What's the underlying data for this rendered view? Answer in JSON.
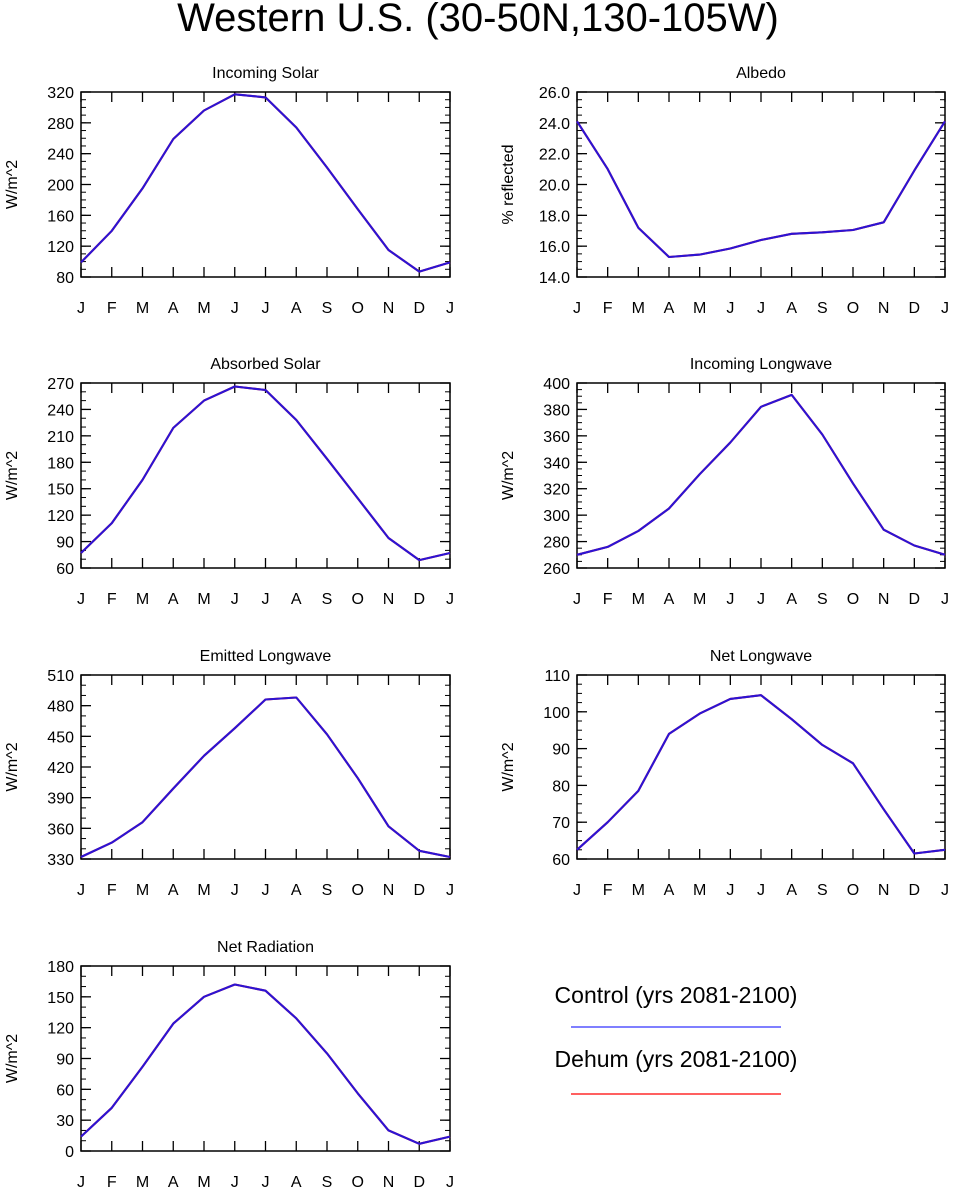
{
  "figure_title": "Western U.S. (30-50N,130-105W)",
  "month_ticks": [
    "J",
    "F",
    "M",
    "A",
    "M",
    "J",
    "J",
    "A",
    "S",
    "O",
    "N",
    "D",
    "J"
  ],
  "legend": {
    "entries": [
      {
        "label": "Control (yrs 2081-2100)",
        "color": "#3333ff"
      },
      {
        "label": "Dehum (yrs 2081-2100)",
        "color": "#ff0000"
      }
    ]
  },
  "colors": {
    "control": "#3333ff",
    "dehum": "#ff0000",
    "overlap": "#2b14d4"
  },
  "chart_data": [
    {
      "type": "line",
      "title": "Incoming Solar",
      "ylabel": "W/m^2",
      "xlabel": "",
      "ylim": [
        80,
        320
      ],
      "yticks": [
        80,
        120,
        160,
        200,
        240,
        280,
        320
      ],
      "ytick_decimals": 0,
      "yminor": 10,
      "x": [
        "J",
        "F",
        "M",
        "A",
        "M",
        "J",
        "J",
        "A",
        "S",
        "O",
        "N",
        "D",
        "J"
      ],
      "series": [
        {
          "name": "Control (yrs 2081-2100)",
          "values": [
            99,
            140,
            195,
            259,
            296,
            317,
            313,
            274,
            222,
            168,
            115,
            87,
            99
          ]
        },
        {
          "name": "Dehum (yrs 2081-2100)",
          "values": [
            99,
            140,
            195,
            259,
            296,
            317,
            313,
            274,
            222,
            168,
            115,
            87,
            99
          ]
        }
      ]
    },
    {
      "type": "line",
      "title": "Albedo",
      "ylabel": "% reflected",
      "xlabel": "",
      "ylim": [
        14,
        26
      ],
      "yticks": [
        14,
        16,
        18,
        20,
        22,
        24,
        26
      ],
      "ytick_decimals": 1,
      "yminor": 0.5,
      "x": [
        "J",
        "F",
        "M",
        "A",
        "M",
        "J",
        "J",
        "A",
        "S",
        "O",
        "N",
        "D",
        "J"
      ],
      "series": [
        {
          "name": "Control (yrs 2081-2100)",
          "values": [
            24.1,
            21.0,
            17.2,
            15.3,
            15.45,
            15.85,
            16.4,
            16.8,
            16.9,
            17.05,
            17.55,
            20.9,
            24.1
          ]
        },
        {
          "name": "Dehum (yrs 2081-2100)",
          "values": [
            24.1,
            21.0,
            17.2,
            15.3,
            15.45,
            15.85,
            16.4,
            16.8,
            16.9,
            17.05,
            17.55,
            20.9,
            24.1
          ]
        }
      ]
    },
    {
      "type": "line",
      "title": "Absorbed Solar",
      "ylabel": "W/m^2",
      "xlabel": "",
      "ylim": [
        60,
        270
      ],
      "yticks": [
        60,
        90,
        120,
        150,
        180,
        210,
        240,
        270
      ],
      "ytick_decimals": 0,
      "yminor": 10,
      "x": [
        "J",
        "F",
        "M",
        "A",
        "M",
        "J",
        "J",
        "A",
        "S",
        "O",
        "N",
        "D",
        "J"
      ],
      "series": [
        {
          "name": "Control (yrs 2081-2100)",
          "values": [
            77,
            111,
            160,
            219,
            250,
            266,
            262,
            228,
            184,
            139,
            94,
            69,
            77
          ]
        },
        {
          "name": "Dehum (yrs 2081-2100)",
          "values": [
            77,
            111,
            160,
            219,
            250,
            266,
            262,
            228,
            184,
            139,
            94,
            69,
            77
          ]
        }
      ]
    },
    {
      "type": "line",
      "title": "Incoming Longwave",
      "ylabel": "W/m^2",
      "xlabel": "",
      "ylim": [
        260,
        400
      ],
      "yticks": [
        260,
        280,
        300,
        320,
        340,
        360,
        380,
        400
      ],
      "ytick_decimals": 0,
      "yminor": 5,
      "x": [
        "J",
        "F",
        "M",
        "A",
        "M",
        "J",
        "J",
        "A",
        "S",
        "O",
        "N",
        "D",
        "J"
      ],
      "series": [
        {
          "name": "Control (yrs 2081-2100)",
          "values": [
            270,
            276,
            288,
            305,
            331,
            355,
            382,
            391,
            361,
            324,
            289,
            277,
            270
          ]
        },
        {
          "name": "Dehum (yrs 2081-2100)",
          "values": [
            270,
            276,
            288,
            305,
            331,
            355,
            382,
            391,
            361,
            324,
            289,
            277,
            270
          ]
        }
      ]
    },
    {
      "type": "line",
      "title": "Emitted Longwave",
      "ylabel": "W/m^2",
      "xlabel": "",
      "ylim": [
        330,
        510
      ],
      "yticks": [
        330,
        360,
        390,
        420,
        450,
        480,
        510
      ],
      "ytick_decimals": 0,
      "yminor": 10,
      "x": [
        "J",
        "F",
        "M",
        "A",
        "M",
        "J",
        "J",
        "A",
        "S",
        "O",
        "N",
        "D",
        "J"
      ],
      "series": [
        {
          "name": "Control (yrs 2081-2100)",
          "values": [
            332,
            346,
            366,
            399,
            431,
            458,
            486,
            488,
            452,
            409,
            362,
            338,
            332
          ]
        },
        {
          "name": "Dehum (yrs 2081-2100)",
          "values": [
            332,
            346,
            366,
            399,
            431,
            458,
            486,
            488,
            452,
            409,
            362,
            338,
            332
          ]
        }
      ]
    },
    {
      "type": "line",
      "title": "Net Longwave",
      "ylabel": "W/m^2",
      "xlabel": "",
      "ylim": [
        60,
        110
      ],
      "yticks": [
        60,
        70,
        80,
        90,
        100,
        110
      ],
      "ytick_decimals": 0,
      "yminor": 2.5,
      "x": [
        "J",
        "F",
        "M",
        "A",
        "M",
        "J",
        "J",
        "A",
        "S",
        "O",
        "N",
        "D",
        "J"
      ],
      "series": [
        {
          "name": "Control (yrs 2081-2100)",
          "values": [
            62.5,
            70,
            78.5,
            94,
            99.5,
            103.5,
            104.5,
            98,
            91,
            86,
            73.5,
            61.5,
            62.5
          ]
        },
        {
          "name": "Dehum (yrs 2081-2100)",
          "values": [
            62.5,
            70,
            78.5,
            94,
            99.5,
            103.5,
            104.5,
            98,
            91,
            86,
            73.5,
            61.5,
            62.5
          ]
        }
      ]
    },
    {
      "type": "line",
      "title": "Net Radiation",
      "ylabel": "W/m^2",
      "xlabel": "",
      "ylim": [
        0,
        180
      ],
      "yticks": [
        0,
        30,
        60,
        90,
        120,
        150,
        180
      ],
      "ytick_decimals": 0,
      "yminor": 10,
      "x": [
        "J",
        "F",
        "M",
        "A",
        "M",
        "J",
        "J",
        "A",
        "S",
        "O",
        "N",
        "D",
        "J"
      ],
      "series": [
        {
          "name": "Control (yrs 2081-2100)",
          "values": [
            14,
            42,
            82,
            124,
            150,
            162,
            156,
            129,
            95,
            56,
            20,
            7,
            14
          ]
        },
        {
          "name": "Dehum (yrs 2081-2100)",
          "values": [
            14,
            42,
            82,
            124,
            150,
            162,
            156,
            129,
            95,
            56,
            20,
            7,
            14
          ]
        }
      ]
    }
  ]
}
